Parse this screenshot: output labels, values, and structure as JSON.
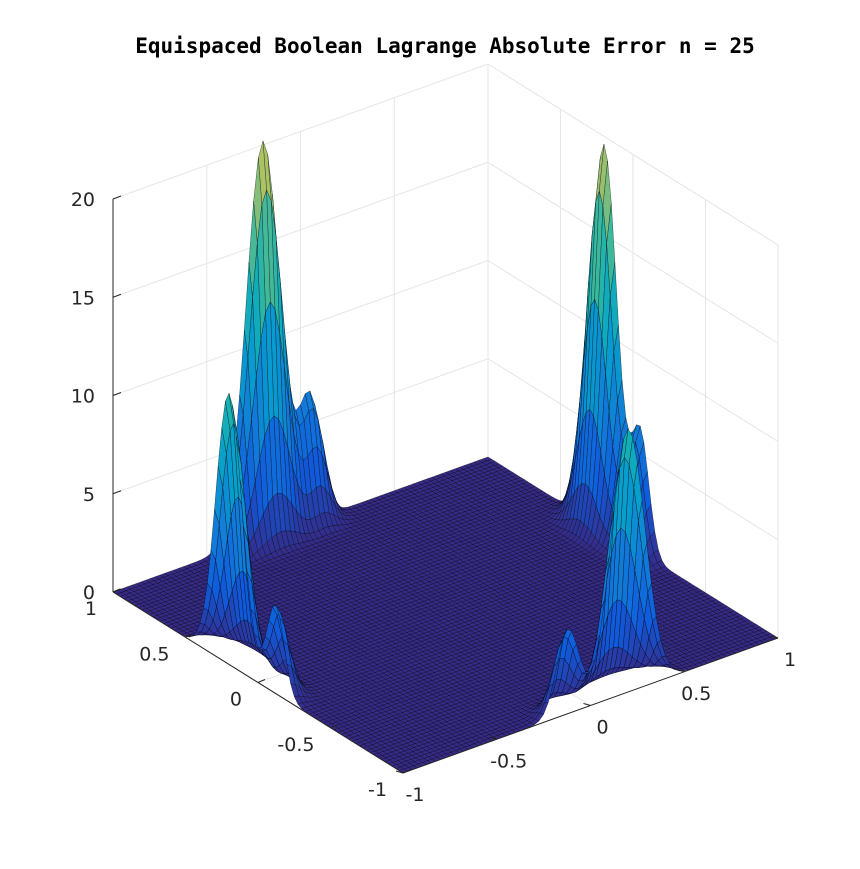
{
  "chart_data": {
    "type": "surface",
    "title": "Equispaced Boolean Lagrange Absolute Error n = 25",
    "xlabel": "",
    "ylabel": "",
    "zlabel": "",
    "xlim": [
      -1,
      1
    ],
    "ylim": [
      -1,
      1
    ],
    "zlim": [
      0,
      20
    ],
    "x_ticks": [
      "-1",
      "-0.5",
      "0",
      "0.5",
      "1"
    ],
    "y_ticks": [
      "-1",
      "-0.5",
      "0",
      "0.5",
      "1"
    ],
    "z_ticks": [
      "0",
      "5",
      "10",
      "15",
      "20"
    ],
    "grid": true,
    "colormap": "parula",
    "peaks": [
      {
        "x": -1.0,
        "y": 0.2,
        "height": 13.8,
        "description": "left corner near x=-1 edge"
      },
      {
        "x": -0.2,
        "y": 1.0,
        "height": 20.2,
        "description": "back-left near y=1 edge"
      },
      {
        "x": 1.0,
        "y": 0.2,
        "height": 19.6,
        "description": "back-right near x=1 edge"
      },
      {
        "x": 0.2,
        "y": -1.0,
        "height": 13.4,
        "description": "front-right near y=-1 edge"
      },
      {
        "x": 0.05,
        "y": 1.0,
        "height": 6.2,
        "description": "secondary bump near y=1 edge"
      },
      {
        "x": -1.0,
        "y": -0.12,
        "height": 4.5,
        "description": "secondary bump near x=-1 edge"
      },
      {
        "x": 1.0,
        "y": -0.05,
        "height": 6.0,
        "description": "secondary bump near x=1 edge"
      },
      {
        "x": -0.12,
        "y": -1.0,
        "height": 4.3,
        "description": "secondary bump near y=-1 edge"
      }
    ]
  }
}
